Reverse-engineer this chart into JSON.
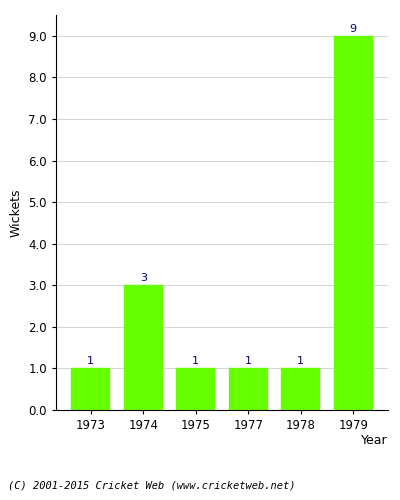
{
  "categories": [
    "1973",
    "1974",
    "1975",
    "1977",
    "1978",
    "1979"
  ],
  "values": [
    1,
    3,
    1,
    1,
    1,
    9
  ],
  "bar_color": "#66ff00",
  "bar_edgecolor": "#66ff00",
  "title": "",
  "xlabel": "Year",
  "ylabel": "Wickets",
  "ylim": [
    0,
    9.5
  ],
  "yticks": [
    0.0,
    1.0,
    2.0,
    3.0,
    4.0,
    5.0,
    6.0,
    7.0,
    8.0,
    9.0
  ],
  "label_color": "#000080",
  "label_fontsize": 8,
  "axis_fontsize": 9,
  "tick_fontsize": 8.5,
  "background_color": "#ffffff",
  "footer_text": "(C) 2001-2015 Cricket Web (www.cricketweb.net)",
  "footer_fontsize": 7.5
}
